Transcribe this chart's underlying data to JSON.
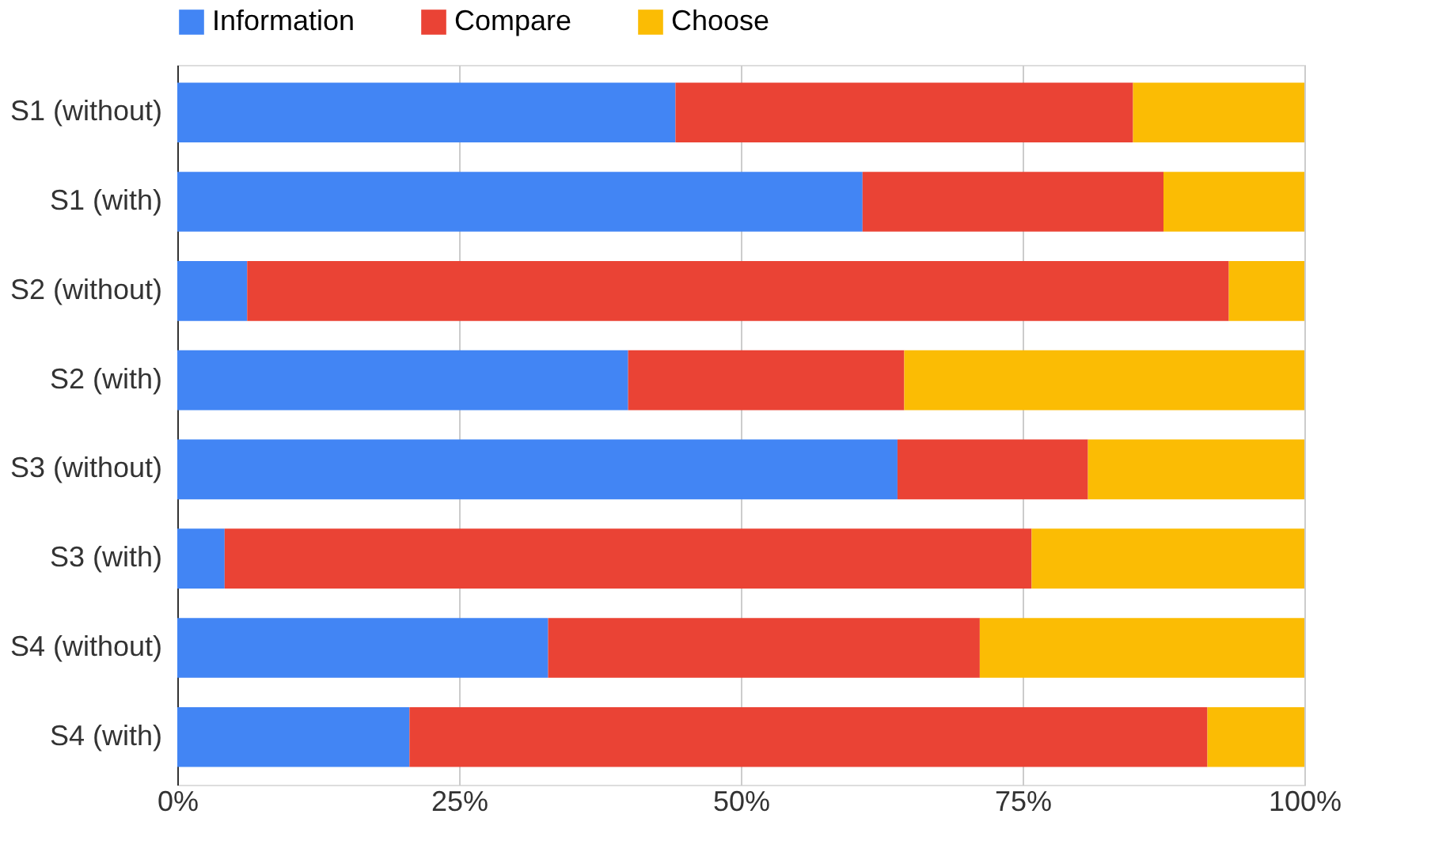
{
  "chart_data": {
    "type": "bar",
    "orientation": "horizontal",
    "stacked": true,
    "categories": [
      "S1 (without)",
      "S1 (with)",
      "S2 (without)",
      "S2 (with)",
      "S3 (without)",
      "S3 (with)",
      "S4 (without)",
      "S4 (with)"
    ],
    "series": [
      {
        "name": "Information",
        "color": "#4285f4",
        "values": [
          44.2,
          60.8,
          6.2,
          40.0,
          63.9,
          4.2,
          32.9,
          20.6
        ]
      },
      {
        "name": "Compare",
        "color": "#ea4335",
        "values": [
          40.6,
          26.7,
          87.1,
          24.5,
          16.9,
          71.6,
          38.3,
          70.8
        ]
      },
      {
        "name": "Choose",
        "color": "#fbbc04",
        "values": [
          15.2,
          12.5,
          6.7,
          35.5,
          19.2,
          24.2,
          28.8,
          8.6
        ]
      }
    ],
    "xlim": [
      0,
      100
    ],
    "xticks": [
      {
        "value": 0,
        "label": "0%"
      },
      {
        "value": 25,
        "label": "25%"
      },
      {
        "value": 50,
        "label": "50%"
      },
      {
        "value": 75,
        "label": "75%"
      },
      {
        "value": 100,
        "label": "100%"
      }
    ],
    "grid": "x",
    "legend": "top"
  }
}
